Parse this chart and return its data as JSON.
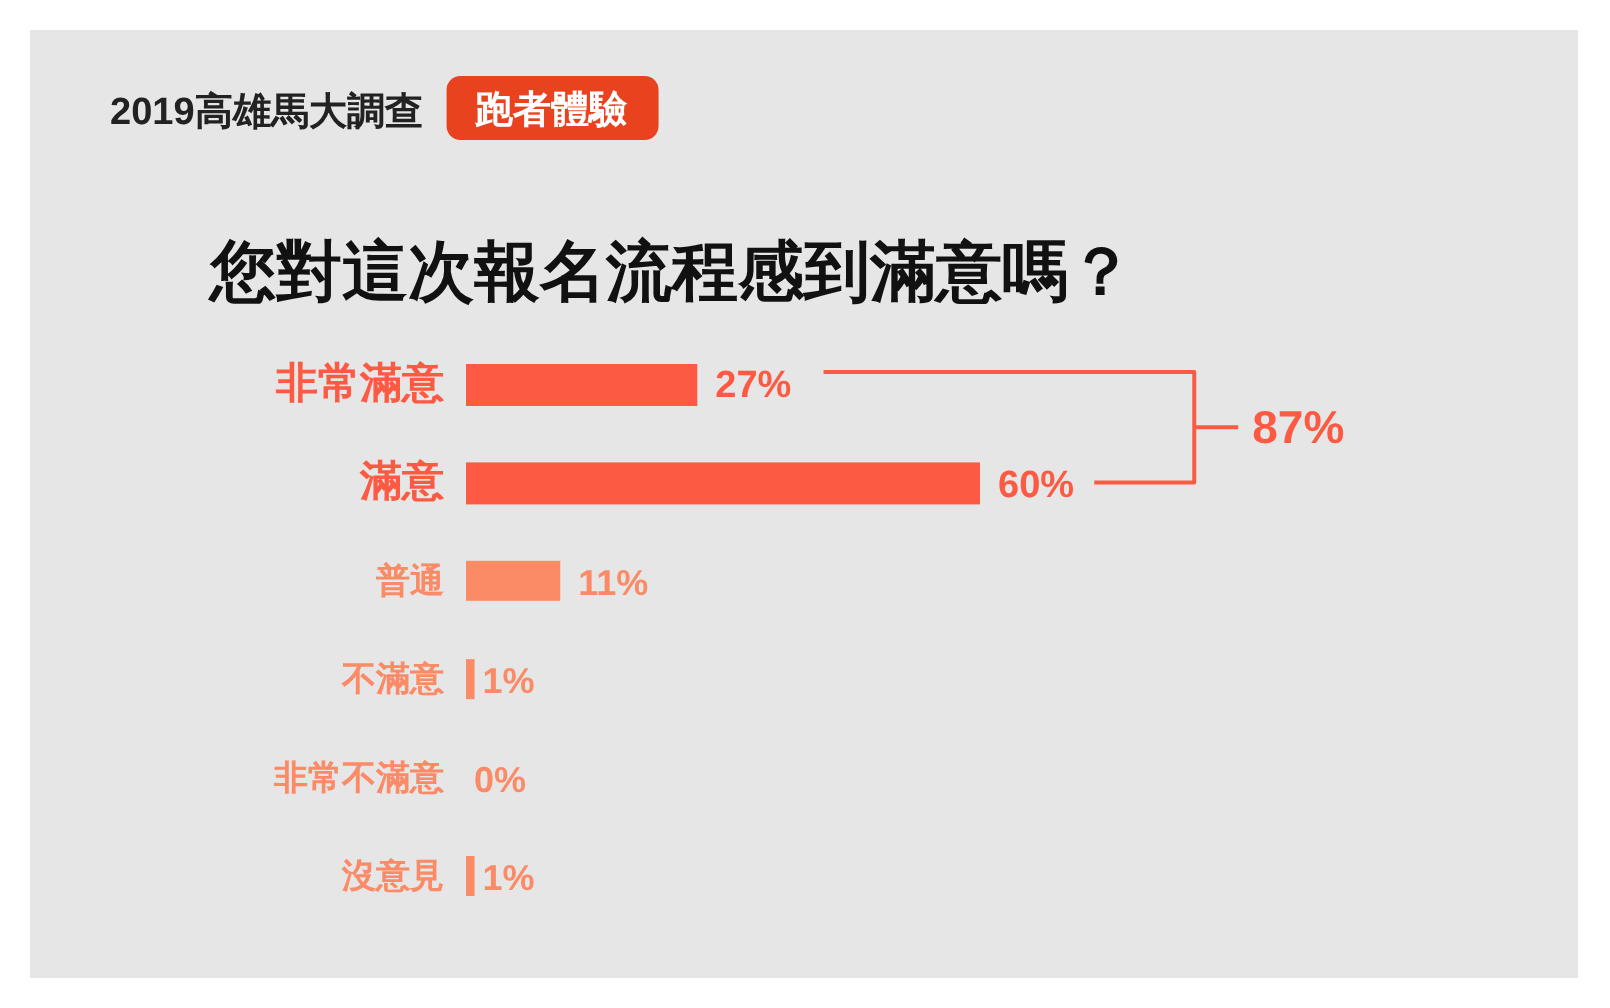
{
  "chart_data": {
    "type": "bar",
    "orientation": "horizontal",
    "subtitle": "2019高雄馬大調查",
    "title": "您對這次報名流程感到滿意嗎？",
    "categories": [
      "非常滿意",
      "滿意",
      "普通",
      "不滿意",
      "非常不滿意",
      "沒意見"
    ],
    "values": [
      27,
      60,
      11,
      1,
      0,
      1
    ],
    "value_labels": [
      "27%",
      "60%",
      "11%",
      "1%",
      "0%",
      "1%"
    ],
    "colors": [
      "#fc5a42",
      "#fc5a42",
      "#fb8a66",
      "#fb8a66",
      "#fb8a66",
      "#fb8a66"
    ],
    "annotations": [
      "跑者體驗",
      "87%"
    ]
  }
}
